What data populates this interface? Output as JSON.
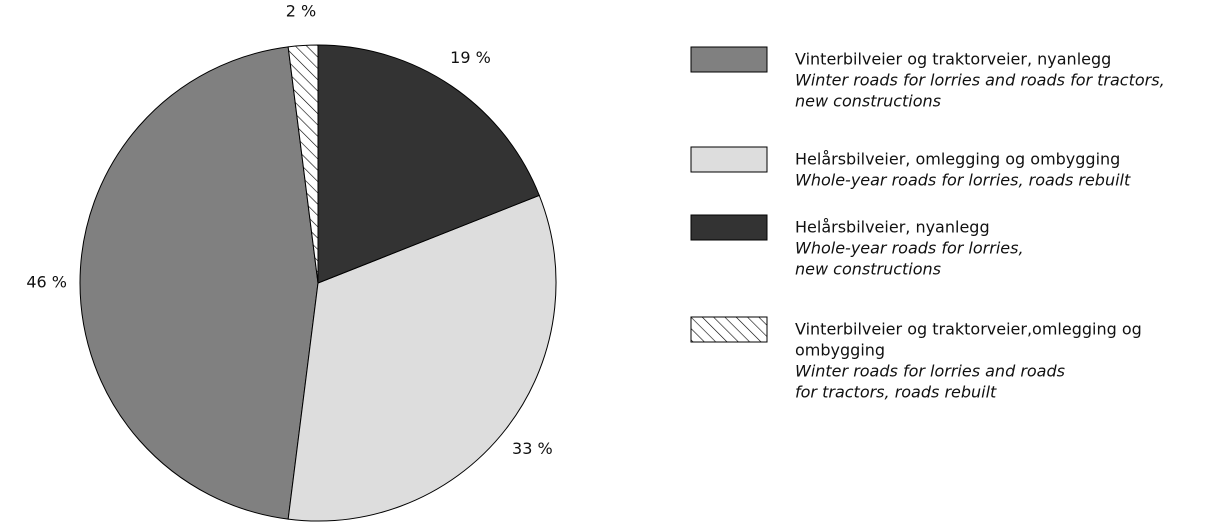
{
  "chart_data": {
    "type": "pie",
    "slices": [
      {
        "label": [
          "Vinterbilveier og traktorveier, nyanlegg"
        ],
        "label_en": [
          "Winter roads for lorries and roads for tractors,",
          "new constructions"
        ],
        "value": 46,
        "value_label": "46 %",
        "color": "#808080",
        "hatch": false
      },
      {
        "label": [
          "Helårsbilveier, omlegging og ombygging"
        ],
        "label_en": [
          "Whole-year roads for lorries, roads rebuilt"
        ],
        "value": 33,
        "value_label": "33 %",
        "color": "#dddddd",
        "hatch": false
      },
      {
        "label": [
          "Helårsbilveier, nyanlegg"
        ],
        "label_en": [
          "Whole-year roads for lorries,",
          "new constructions"
        ],
        "value": 19,
        "value_label": "19 %",
        "color": "#333333",
        "hatch": false
      },
      {
        "label": [
          "Vinterbilveier og traktorveier,omlegging og",
          "ombygging"
        ],
        "label_en": [
          "Winter roads for lorries and roads",
          "for tractors, roads rebuilt"
        ],
        "value": 2,
        "value_label": "2 %",
        "color": "#ffffff",
        "hatch": true
      }
    ]
  }
}
